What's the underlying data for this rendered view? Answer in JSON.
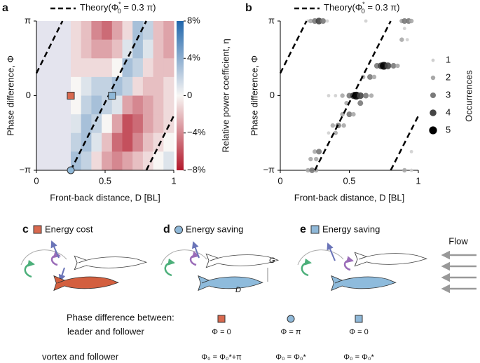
{
  "chart_data": [
    {
      "type": "heatmap",
      "panel": "a",
      "xlabel": "Front-back distance, D [BL]",
      "ylabel": "Phase difference, Φ",
      "xlim": [
        0,
        1
      ],
      "xticks": [
        0,
        0.5,
        1
      ],
      "ylim": [
        -1,
        1
      ],
      "yticks": [
        {
          "value": -1,
          "label": "−π"
        },
        0,
        {
          "value": 1,
          "label": "π"
        }
      ],
      "x_edges": [
        0.25,
        0.325,
        0.4,
        0.475,
        0.55,
        0.625,
        0.7,
        0.775,
        0.85,
        0.925,
        1
      ],
      "y_edges": [
        1,
        0.75,
        0.5,
        0.25,
        0,
        -0.25,
        -0.5,
        -0.75,
        -1
      ],
      "z": [
        [
          -1,
          -2,
          -4,
          -5,
          -3,
          -1,
          3,
          2,
          -2,
          -3
        ],
        [
          -1,
          -2,
          -3,
          -3,
          -2,
          1,
          3,
          1,
          -2,
          -3
        ],
        [
          -1,
          -1,
          -1,
          -1,
          0,
          3,
          2,
          -1,
          -2,
          -2
        ],
        [
          0,
          1,
          2,
          2,
          3,
          2,
          -1,
          -2,
          -2,
          -1
        ],
        [
          0,
          2,
          3,
          2,
          1,
          -3,
          -4,
          -3,
          -2,
          -1
        ],
        [
          1,
          3,
          2,
          0,
          -3,
          -6,
          -5,
          -3,
          -2,
          -1
        ],
        [
          2,
          3,
          1,
          -2,
          -5,
          -6,
          -4,
          -2,
          -1,
          0
        ],
        [
          3,
          2,
          -1,
          -3,
          -4,
          -3,
          -2,
          -1,
          0,
          1
        ]
      ],
      "colorbar": {
        "label": "Relative power coefficient, η",
        "lim": [
          -8,
          8
        ],
        "ticks": [
          {
            "value": 8,
            "label": "8%"
          },
          {
            "value": 4,
            "label": "4%"
          },
          0,
          {
            "value": -4,
            "label": "−4%"
          },
          {
            "value": -8,
            "label": "−8%"
          }
        ]
      },
      "theory": {
        "legend": {
          "main": "Theory(Φ",
          "sup": "*",
          "sub": "0",
          "rest": " = 0.3 π)"
        },
        "x": [
          0,
          0.19,
          null,
          0.25,
          0.8,
          null,
          0.8,
          1
        ],
        "y": [
          0.3,
          1,
          null,
          -1,
          1,
          null,
          -1,
          -0.27
        ]
      },
      "markers": [
        {
          "x": 0.25,
          "y": 0,
          "shape": "square",
          "color": "#d9694f"
        },
        {
          "x": 0.25,
          "y": -1,
          "shape": "circle",
          "color": "#8fb8d8"
        },
        {
          "x": 0.55,
          "y": 0,
          "shape": "square",
          "color": "#8fb8d8"
        }
      ]
    },
    {
      "type": "scatter",
      "panel": "b",
      "xlabel": "Front-back distance, D [BL]",
      "ylabel": "Phase difference, Φ",
      "xlim": [
        0,
        1
      ],
      "xticks": [
        0,
        0.5,
        1
      ],
      "ylim": [
        -1,
        1
      ],
      "yticks": [
        {
          "value": -1,
          "label": "−π"
        },
        0,
        {
          "value": 1,
          "label": "π"
        }
      ],
      "x": [
        0.2,
        0.22,
        0.25,
        0.28,
        0.31,
        0.34,
        0.62,
        0.88,
        0.9,
        0.93,
        0.95,
        0.2,
        0.23,
        0.26,
        0.95,
        0.9,
        0.7,
        0.73,
        0.75,
        0.78,
        0.82,
        0.85,
        0.6,
        0.65,
        0.68,
        0.45,
        0.5,
        0.53,
        0.55,
        0.58,
        0.62,
        0.66,
        0.35,
        0.4,
        0.48,
        0.58,
        0.45,
        0.5,
        0.53,
        0.38,
        0.42,
        0.46,
        0.35,
        0.4,
        0.25,
        0.28,
        0.95,
        0.22,
        0.26,
        0.88,
        0.92,
        0.9
      ],
      "y": [
        1,
        1,
        1,
        1,
        1,
        1,
        1,
        1,
        1,
        1,
        1,
        -1,
        -1,
        -1,
        -1,
        -1,
        0.4,
        0.4,
        0.4,
        0.4,
        0.4,
        0.4,
        0.25,
        0.25,
        0.25,
        0,
        0,
        0,
        0,
        0,
        0,
        0,
        0,
        0,
        -0.1,
        -0.1,
        -0.25,
        -0.25,
        -0.25,
        -0.4,
        -0.4,
        -0.4,
        -0.5,
        -0.5,
        -0.75,
        -0.75,
        -0.75,
        -0.85,
        -0.85,
        0.75,
        0.75,
        0.9
      ],
      "sizes": [
        1,
        2,
        3,
        4,
        3,
        1,
        1,
        2,
        3,
        3,
        2,
        2,
        3,
        2,
        1,
        2,
        3,
        4,
        5,
        4,
        3,
        2,
        2,
        3,
        2,
        2,
        3,
        4,
        5,
        4,
        3,
        2,
        1,
        1,
        2,
        3,
        2,
        3,
        2,
        2,
        3,
        2,
        1,
        2,
        2,
        3,
        1,
        2,
        2,
        2,
        1,
        1
      ],
      "size_legend": {
        "title": "Occurrences",
        "values": [
          1,
          2,
          3,
          4,
          5
        ],
        "colors": [
          "#cfcfcf",
          "#a8a8a8",
          "#7a7a7a",
          "#454545",
          "#000000"
        ]
      },
      "theory": {
        "legend": {
          "main": "Theory(Φ",
          "sup": "*",
          "sub": "0",
          "rest": " = 0.3 π)"
        },
        "x": [
          0,
          0.19,
          null,
          0.25,
          0.8,
          null,
          0.8,
          1
        ],
        "y": [
          0.3,
          1,
          null,
          -1,
          1,
          null,
          -1,
          -0.27
        ]
      }
    }
  ],
  "diagrams": [
    {
      "letter": "c",
      "title": "Energy cost",
      "shape": "square",
      "color": "#d9694f"
    },
    {
      "letter": "d",
      "title": "Energy saving",
      "shape": "circle",
      "color": "#8fb8d8"
    },
    {
      "letter": "e",
      "title": "Energy saving",
      "shape": "square",
      "color": "#8fb8d8"
    }
  ],
  "annotations": {
    "flow": "Flow",
    "G": "G",
    "D": "D"
  },
  "table": {
    "heading": "Phase difference between:",
    "rows": [
      {
        "label": "leader and follower",
        "cells": [
          "Φ = 0",
          "Φ = π",
          "Φ = 0"
        ]
      },
      {
        "label": "vortex and follower",
        "cells": [
          "Φ₀ = Φ₀*+π",
          "Φ₀ = Φ₀*",
          "Φ₀ = Φ₀*"
        ]
      }
    ]
  }
}
